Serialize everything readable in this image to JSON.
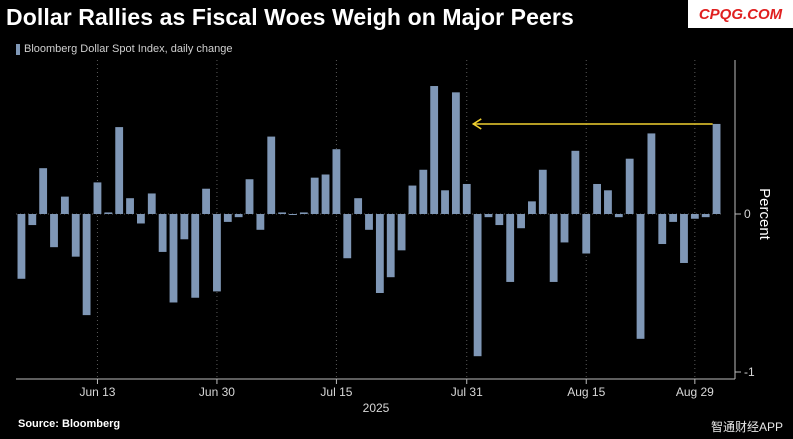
{
  "title": "Dollar Rallies as Fiscal Woes Weigh on Major Peers",
  "watermark": "CPQG.COM",
  "source": "Source: Bloomberg",
  "credit": "智通财经APP",
  "chart_data": {
    "type": "bar",
    "legend": "Bloomberg Dollar Spot Index, daily change",
    "ylabel": "Percent",
    "xlabel": "2025",
    "ylim": [
      -1.05,
      1.0
    ],
    "yticks": [
      0,
      -1
    ],
    "x_tick_labels": [
      {
        "label": "Jun 13",
        "index": 7
      },
      {
        "label": "Jun 30",
        "index": 18
      },
      {
        "label": "Jul 15",
        "index": 29
      },
      {
        "label": "Jul 31",
        "index": 41
      },
      {
        "label": "Aug 15",
        "index": 52
      },
      {
        "label": "Aug 29",
        "index": 62
      }
    ],
    "values": [
      -0.41,
      -0.07,
      0.29,
      -0.21,
      0.11,
      -0.27,
      -0.64,
      0.2,
      0.01,
      0.55,
      0.1,
      -0.06,
      0.13,
      -0.24,
      -0.56,
      -0.16,
      -0.53,
      0.16,
      -0.49,
      -0.05,
      -0.02,
      0.22,
      -0.1,
      0.49,
      0.01,
      0.0,
      0.01,
      0.23,
      0.25,
      0.41,
      -0.28,
      0.1,
      -0.1,
      -0.5,
      -0.4,
      -0.23,
      0.18,
      0.28,
      0.81,
      0.15,
      0.77,
      0.19,
      -0.9,
      -0.02,
      -0.07,
      -0.43,
      -0.09,
      0.08,
      0.28,
      -0.43,
      -0.18,
      0.4,
      -0.25,
      0.19,
      0.15,
      -0.02,
      0.35,
      -0.79,
      0.51,
      -0.19,
      -0.05,
      -0.31,
      -0.03,
      -0.02,
      0.57
    ],
    "annotation": {
      "type": "arrow",
      "from_index": 64,
      "to_index": 41,
      "value": 0.57,
      "color": "#f0d030"
    },
    "bar_color": "#7f97b6"
  }
}
